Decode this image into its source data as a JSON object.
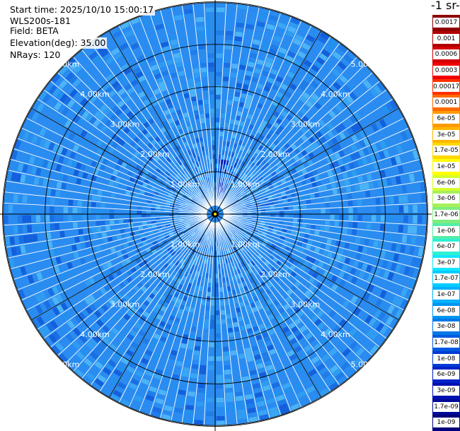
{
  "header": {
    "start_time": "Start time: 2025/10/10 15:00:17",
    "instrument": "WLS200s-181",
    "field": "Field: BETA",
    "elevation": "Elevation(deg): 35.00",
    "nrays": "NRays: 120"
  },
  "colorbar": {
    "unit_title": "-1 sr-",
    "labels": [
      "0.0017",
      "0.001",
      "0.0006",
      "0.0003",
      "0.00017",
      "0.0001",
      "6e-05",
      "3e-05",
      "1.7e-05",
      "1e-05",
      "6e-06",
      "3e-06",
      "1.7e-06",
      "1e-06",
      "6e-07",
      "3e-07",
      "1.7e-07",
      "1e-07",
      "6e-08",
      "3e-08",
      "1.7e-08",
      "1e-08",
      "6e-09",
      "3e-09",
      "1.7e-09",
      "1e-09"
    ],
    "colors": [
      "#8f0000",
      "#b00000",
      "#d40000",
      "#f20000",
      "#ff3000",
      "#ff6a00",
      "#ff9a00",
      "#ffb600",
      "#ffd800",
      "#ffff00",
      "#d4ff2a",
      "#a8f05a",
      "#7cee7c",
      "#55eea8",
      "#2ef0d4",
      "#14e6ff",
      "#00ccff",
      "#00b0ff",
      "#0096f0",
      "#0078e8",
      "#005ae0",
      "#003cd4",
      "#0022c8",
      "#0010b0",
      "#000896",
      "#00007a"
    ]
  },
  "chart_data": {
    "type": "polar_ppi",
    "field": "BETA",
    "elevation_deg": 35.0,
    "n_rays": 120,
    "range_rings_km": [
      1.0,
      2.0,
      3.0,
      4.0,
      5.0
    ],
    "range_ring_labels": [
      "1.00km",
      "2.00km",
      "3.00km",
      "4.00km",
      "5.00km"
    ],
    "max_range_km": 6.3,
    "azimuth_lines_deg": [
      0,
      30,
      60,
      90,
      120,
      150,
      180,
      210,
      240,
      270,
      300,
      330
    ],
    "typical_value": "1e-07",
    "enhanced_sector": {
      "azimuth_deg": [
        5,
        25
      ],
      "range_km": [
        0.2,
        1.6
      ],
      "value": "1e-08"
    }
  }
}
